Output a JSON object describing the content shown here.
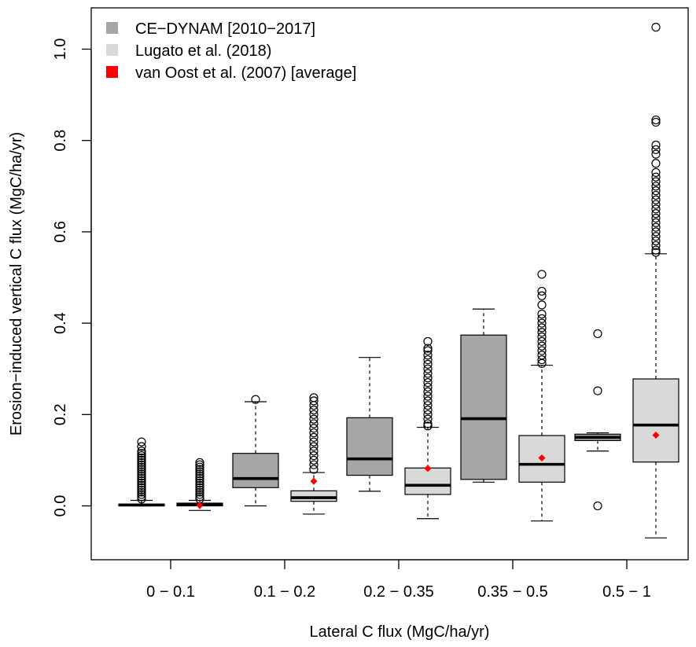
{
  "chart_data": {
    "type": "boxplot",
    "xlabel": "Lateral C flux (MgC/ha/yr)",
    "ylabel": "Erosion−induced vertical C flux (MgC/ha/yr)",
    "ylim": [
      -0.1,
      1.07
    ],
    "yticks": [
      0.0,
      0.2,
      0.4,
      0.6,
      0.8,
      1.0
    ],
    "ytick_labels": [
      "0.0",
      "0.2",
      "0.4",
      "0.6",
      "0.8",
      "1.0"
    ],
    "categories": [
      "0 − 0.1",
      "0.1 − 0.2",
      "0.2 − 0.35",
      "0.35 − 0.5",
      "0.5 − 1"
    ],
    "grid": false,
    "legend": {
      "position": "top-left",
      "entries": [
        {
          "label": "CE−DYNAM [2010−2017]",
          "color": "#a6a6a6",
          "type": "box"
        },
        {
          "label": "Lugato et al. (2018)",
          "color": "#d9d9d9",
          "type": "box"
        },
        {
          "label": "van Oost et al. (2007) [average]",
          "color": "#ff0000",
          "type": "point"
        }
      ]
    },
    "series": [
      {
        "name": "CE−DYNAM [2010−2017]",
        "color": "#a6a6a6",
        "boxes": [
          {
            "whisker_low": 0.0,
            "q1": 0.0,
            "median": 0.002,
            "q3": 0.004,
            "whisker_high": 0.012,
            "outliers": [
              0.015,
              0.02,
              0.025,
              0.03,
              0.035,
              0.04,
              0.045,
              0.05,
              0.055,
              0.06,
              0.065,
              0.07,
              0.075,
              0.08,
              0.085,
              0.09,
              0.095,
              0.1,
              0.105,
              0.11,
              0.115,
              0.12,
              0.13,
              0.14
            ]
          },
          {
            "whisker_low": 0.0,
            "q1": 0.04,
            "median": 0.06,
            "q3": 0.115,
            "whisker_high": 0.228,
            "outliers": [
              0.233
            ]
          },
          {
            "whisker_low": 0.032,
            "q1": 0.067,
            "median": 0.103,
            "q3": 0.193,
            "whisker_high": 0.325,
            "outliers": []
          },
          {
            "whisker_low": 0.052,
            "q1": 0.058,
            "median": 0.191,
            "q3": 0.374,
            "whisker_high": 0.431,
            "outliers": []
          },
          {
            "whisker_low": 0.12,
            "q1": 0.143,
            "median": 0.15,
            "q3": 0.157,
            "whisker_high": 0.16,
            "outliers": [
              0.0,
              0.252,
              0.377
            ]
          }
        ]
      },
      {
        "name": "Lugato et al. (2018)",
        "color": "#d9d9d9",
        "boxes": [
          {
            "whisker_low": -0.01,
            "q1": 0.0,
            "median": 0.003,
            "q3": 0.006,
            "whisker_high": 0.012,
            "outliers": [
              0.015,
              0.02,
              0.025,
              0.03,
              0.035,
              0.04,
              0.045,
              0.05,
              0.055,
              0.06,
              0.065,
              0.07,
              0.075,
              0.08,
              0.085,
              0.09,
              0.095
            ]
          },
          {
            "whisker_low": -0.018,
            "q1": 0.01,
            "median": 0.018,
            "q3": 0.033,
            "whisker_high": 0.073,
            "outliers": [
              0.08,
              0.09,
              0.1,
              0.11,
              0.12,
              0.13,
              0.14,
              0.15,
              0.16,
              0.17,
              0.18,
              0.19,
              0.2,
              0.21,
              0.22,
              0.23,
              0.237
            ]
          },
          {
            "whisker_low": -0.028,
            "q1": 0.025,
            "median": 0.045,
            "q3": 0.083,
            "whisker_high": 0.172,
            "outliers": [
              0.175,
              0.18,
              0.19,
              0.2,
              0.21,
              0.22,
              0.23,
              0.24,
              0.25,
              0.26,
              0.27,
              0.28,
              0.29,
              0.3,
              0.31,
              0.32,
              0.33,
              0.34,
              0.345,
              0.36
            ]
          },
          {
            "whisker_low": -0.033,
            "q1": 0.052,
            "median": 0.091,
            "q3": 0.154,
            "whisker_high": 0.308,
            "outliers": [
              0.312,
              0.32,
              0.33,
              0.34,
              0.35,
              0.36,
              0.37,
              0.38,
              0.39,
              0.4,
              0.41,
              0.42,
              0.44,
              0.46,
              0.47,
              0.507
            ]
          },
          {
            "whisker_low": -0.07,
            "q1": 0.096,
            "median": 0.177,
            "q3": 0.278,
            "whisker_high": 0.552,
            "outliers": [
              0.555,
              0.56,
              0.57,
              0.58,
              0.59,
              0.6,
              0.61,
              0.62,
              0.63,
              0.64,
              0.65,
              0.66,
              0.67,
              0.68,
              0.69,
              0.7,
              0.71,
              0.72,
              0.73,
              0.75,
              0.77,
              0.78,
              0.79,
              0.84,
              0.845,
              1.048
            ]
          }
        ]
      },
      {
        "name": "van Oost et al. (2007) [average]",
        "color": "#ff0000",
        "type": "point",
        "values": [
          0.001,
          0.054,
          0.082,
          0.105,
          0.155
        ]
      }
    ]
  }
}
